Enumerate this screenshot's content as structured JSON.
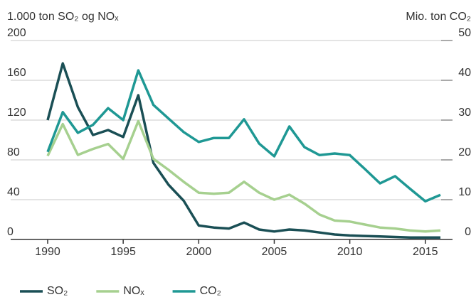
{
  "chart_data": {
    "type": "line",
    "y_label": "1.000 ton SO₂ og NOₓ",
    "y2_label": "Mio. ton CO₂",
    "x": [
      1990,
      1991,
      1992,
      1993,
      1994,
      1995,
      1996,
      1997,
      1998,
      1999,
      2000,
      2001,
      2002,
      2003,
      2004,
      2005,
      2006,
      2007,
      2008,
      2009,
      2010,
      2011,
      2012,
      2013,
      2014,
      2015,
      2016
    ],
    "xlim": [
      1990,
      2016
    ],
    "xticks": [
      1990,
      1995,
      2000,
      2005,
      2010,
      2015
    ],
    "ylim": [
      0,
      200
    ],
    "yticks": [
      0,
      40,
      80,
      120,
      160,
      200
    ],
    "y2lim": [
      0,
      50
    ],
    "y2ticks": [
      0,
      10,
      20,
      30,
      40,
      50
    ],
    "grid": true,
    "legend": "bottom",
    "series": [
      {
        "name": "SO₂",
        "color": "#1a4f55",
        "values": [
          120,
          177,
          133,
          105,
          110,
          103,
          145,
          77,
          55,
          39,
          14,
          12,
          11,
          17,
          10,
          8,
          10,
          9,
          7,
          5,
          4,
          3.5,
          3,
          2.5,
          2,
          2,
          2
        ]
      },
      {
        "name": "NOₓ",
        "color": "#a6d08f",
        "values": [
          84,
          116,
          85,
          91,
          96,
          81,
          119,
          81,
          70,
          58,
          47,
          46,
          47,
          58,
          47,
          40,
          45,
          36,
          25,
          19,
          18,
          15,
          12,
          11,
          9,
          8,
          9
        ]
      },
      {
        "name": "CO₂",
        "color": "#1f9894",
        "axis": "y2",
        "values": [
          22,
          32,
          26.8,
          28.8,
          33,
          30,
          42.5,
          33.8,
          30.4,
          27,
          24.5,
          25.5,
          25.5,
          30.2,
          24.1,
          20.9,
          28.4,
          23.2,
          21.2,
          21.6,
          21.2,
          17.7,
          14.1,
          15.9,
          12.7,
          9.6,
          11.2
        ]
      }
    ]
  }
}
